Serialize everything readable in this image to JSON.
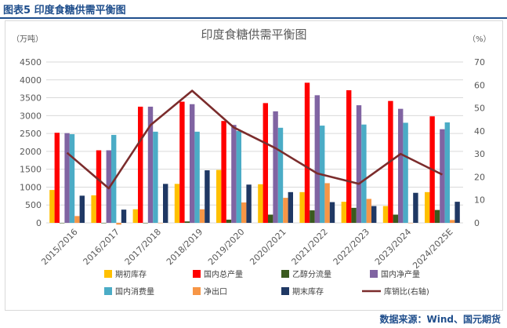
{
  "figure_label": "图表5 印度食糖供需平衡图",
  "source": "数据来源：Wind、国元期货",
  "chart_data": {
    "type": "bar",
    "title": "印度食糖供需平衡图",
    "y_left_unit": "（万吨）",
    "y_right_unit": "（%）",
    "ylim": [
      0,
      4500
    ],
    "y_ticks": [
      0,
      500,
      1000,
      1500,
      2000,
      2500,
      3000,
      3500,
      4000,
      4500
    ],
    "y2lim": [
      0,
      70
    ],
    "y2_ticks": [
      0,
      10,
      20,
      30,
      40,
      50,
      60,
      70
    ],
    "categories": [
      "2015/2016",
      "2016/2017",
      "2017/2018",
      "2018/2019",
      "2019/2020",
      "2020/2021",
      "2021/2022",
      "2022/2023",
      "2023/2024",
      "2024/2025E"
    ],
    "series": [
      {
        "name": "期初库存",
        "color": "#ffc000",
        "values": [
          920,
          770,
          380,
          1090,
          1480,
          1080,
          860,
          590,
          470,
          860
        ]
      },
      {
        "name": "国内总产量",
        "color": "#ff0000",
        "values": [
          2520,
          2030,
          3250,
          3390,
          2850,
          3350,
          3920,
          3710,
          3410,
          2980
        ]
      },
      {
        "name": "乙醇分流量",
        "color": "#3a5a1e",
        "values": [
          0,
          0,
          0,
          40,
          90,
          230,
          350,
          420,
          230,
          360
        ]
      },
      {
        "name": "国内净产量",
        "color": "#8064a2",
        "values": [
          2510,
          2030,
          3250,
          3320,
          2740,
          3120,
          3570,
          3290,
          3190,
          2620
        ]
      },
      {
        "name": "国内消费量",
        "color": "#4bacc6",
        "values": [
          2480,
          2460,
          2550,
          2550,
          2570,
          2660,
          2720,
          2750,
          2800,
          2810
        ]
      },
      {
        "name": "净出口",
        "color": "#f79646",
        "values": [
          190,
          -50,
          0,
          380,
          570,
          700,
          1110,
          670,
          0,
          80
        ]
      },
      {
        "name": "期末库存",
        "color": "#1f3864",
        "values": [
          760,
          370,
          1090,
          1470,
          1070,
          860,
          580,
          470,
          840,
          590
        ]
      }
    ],
    "line_series": {
      "name": "库销比(右轴)",
      "color": "#7b2c2c",
      "axis": "right",
      "values": [
        30.5,
        15,
        42.5,
        57.5,
        41.5,
        32.5,
        21.5,
        17,
        30,
        21
      ]
    }
  }
}
